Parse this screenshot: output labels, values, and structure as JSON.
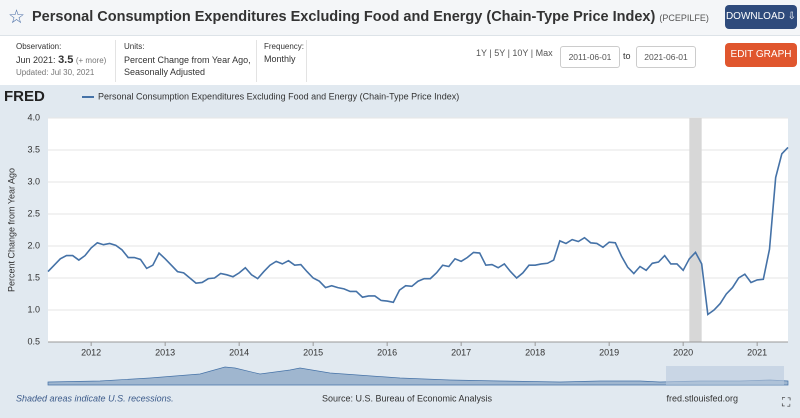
{
  "header": {
    "title": "Personal Consumption Expenditures Excluding Food and Energy (Chain-Type Price Index)",
    "series_id": "(PCEPILFE)",
    "download": "DOWNLOAD"
  },
  "info": {
    "observation_label": "Observation:",
    "observation_date": "Jun 2021:",
    "observation_value": "3.5",
    "more": "(+ more)",
    "updated": "Updated: Jul 30, 2021",
    "units_label": "Units:",
    "units": "Percent Change from Year Ago, Seasonally Adjusted",
    "frequency_label": "Frequency:",
    "frequency": "Monthly"
  },
  "controls": {
    "ranges": [
      "1Y",
      "5Y",
      "10Y",
      "Max"
    ],
    "start": "2011-06-01",
    "to": "to",
    "end": "2021-06-01",
    "edit": "EDIT GRAPH"
  },
  "brand": "FRED",
  "chart_data": {
    "type": "line",
    "ylabel": "Percent Change from Year Ago",
    "x": [
      "2011-06",
      "2011-07",
      "2011-08",
      "2011-09",
      "2011-10",
      "2011-11",
      "2011-12",
      "2012-01",
      "2012-02",
      "2012-03",
      "2012-04",
      "2012-05",
      "2012-06",
      "2012-07",
      "2012-08",
      "2012-09",
      "2012-10",
      "2012-11",
      "2012-12",
      "2013-01",
      "2013-02",
      "2013-03",
      "2013-04",
      "2013-05",
      "2013-06",
      "2013-07",
      "2013-08",
      "2013-09",
      "2013-10",
      "2013-11",
      "2013-12",
      "2014-01",
      "2014-02",
      "2014-03",
      "2014-04",
      "2014-05",
      "2014-06",
      "2014-07",
      "2014-08",
      "2014-09",
      "2014-10",
      "2014-11",
      "2014-12",
      "2015-01",
      "2015-02",
      "2015-03",
      "2015-04",
      "2015-05",
      "2015-06",
      "2015-07",
      "2015-08",
      "2015-09",
      "2015-10",
      "2015-11",
      "2015-12",
      "2016-01",
      "2016-02",
      "2016-03",
      "2016-04",
      "2016-05",
      "2016-06",
      "2016-07",
      "2016-08",
      "2016-09",
      "2016-10",
      "2016-11",
      "2016-12",
      "2017-01",
      "2017-02",
      "2017-03",
      "2017-04",
      "2017-05",
      "2017-06",
      "2017-07",
      "2017-08",
      "2017-09",
      "2017-10",
      "2017-11",
      "2017-12",
      "2018-01",
      "2018-02",
      "2018-03",
      "2018-04",
      "2018-05",
      "2018-06",
      "2018-07",
      "2018-08",
      "2018-09",
      "2018-10",
      "2018-11",
      "2018-12",
      "2019-01",
      "2019-02",
      "2019-03",
      "2019-04",
      "2019-05",
      "2019-06",
      "2019-07",
      "2019-08",
      "2019-09",
      "2019-10",
      "2019-11",
      "2019-12",
      "2020-01",
      "2020-02",
      "2020-03",
      "2020-04",
      "2020-05",
      "2020-06",
      "2020-07",
      "2020-08",
      "2020-09",
      "2020-10",
      "2020-11",
      "2020-12",
      "2021-01",
      "2021-02",
      "2021-03",
      "2021-04",
      "2021-05",
      "2021-06"
    ],
    "series": [
      {
        "name": "Personal Consumption Expenditures Excluding Food and Energy (Chain-Type Price Index)",
        "color": "#4572a7",
        "values": [
          1.6,
          1.7,
          1.8,
          1.85,
          1.85,
          1.78,
          1.85,
          1.97,
          2.05,
          2.02,
          2.04,
          2.01,
          1.94,
          1.82,
          1.82,
          1.79,
          1.65,
          1.7,
          1.89,
          1.8,
          1.7,
          1.6,
          1.58,
          1.5,
          1.42,
          1.43,
          1.49,
          1.5,
          1.57,
          1.55,
          1.52,
          1.58,
          1.66,
          1.55,
          1.49,
          1.6,
          1.7,
          1.76,
          1.72,
          1.77,
          1.7,
          1.71,
          1.6,
          1.5,
          1.45,
          1.35,
          1.38,
          1.35,
          1.33,
          1.29,
          1.29,
          1.2,
          1.22,
          1.22,
          1.15,
          1.14,
          1.12,
          1.31,
          1.38,
          1.37,
          1.45,
          1.49,
          1.49,
          1.58,
          1.7,
          1.68,
          1.8,
          1.76,
          1.82,
          1.9,
          1.89,
          1.7,
          1.71,
          1.66,
          1.72,
          1.6,
          1.5,
          1.58,
          1.7,
          1.7,
          1.72,
          1.73,
          1.78,
          2.08,
          2.04,
          2.1,
          2.07,
          2.13,
          2.05,
          2.04,
          1.98,
          2.06,
          2.05,
          1.84,
          1.67,
          1.57,
          1.68,
          1.62,
          1.73,
          1.75,
          1.85,
          1.72,
          1.72,
          1.62,
          1.8,
          1.9,
          1.72,
          0.93,
          1.0,
          1.1,
          1.25,
          1.35,
          1.5,
          1.56,
          1.43,
          1.47,
          1.48,
          1.95,
          3.07,
          3.44,
          3.54
        ]
      }
    ],
    "xlim": [
      "2011-06",
      "2021-06"
    ],
    "xticks": [
      {
        "value": "2012-01",
        "label": "2012"
      },
      {
        "value": "2013-01",
        "label": "2013"
      },
      {
        "value": "2014-01",
        "label": "2014"
      },
      {
        "value": "2015-01",
        "label": "2015"
      },
      {
        "value": "2016-01",
        "label": "2016"
      },
      {
        "value": "2017-01",
        "label": "2017"
      },
      {
        "value": "2018-01",
        "label": "2018"
      },
      {
        "value": "2019-01",
        "label": "2019"
      },
      {
        "value": "2020-01",
        "label": "2020"
      },
      {
        "value": "2021-01",
        "label": "2021"
      }
    ],
    "ylim": [
      0.5,
      4.0
    ],
    "yticks": [
      0.5,
      {
        "value": 1,
        "label": "1.0"
      },
      1.5,
      {
        "value": 2,
        "label": "2.0"
      },
      2.5,
      {
        "value": 3,
        "label": "3.0"
      },
      3.5,
      {
        "value": 4,
        "label": "4.0"
      }
    ],
    "grid": true,
    "recessions": [
      {
        "start": "2020-02",
        "end": "2020-04"
      }
    ],
    "recession_color": "#d7d7d7"
  },
  "footer": {
    "note": "Shaded areas indicate U.S. recessions.",
    "source": "Source: U.S. Bureau of Economic Analysis",
    "site": "fred.stlouisfed.org"
  }
}
